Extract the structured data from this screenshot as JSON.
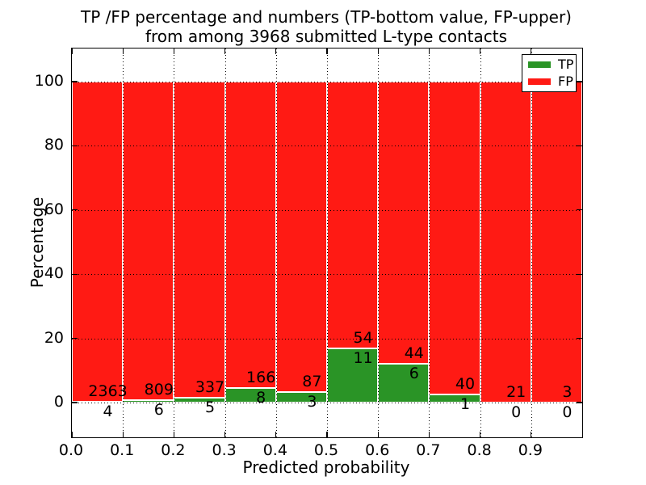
{
  "figure": {
    "title_line1": "TP /FP percentage and numbers (TP-bottom value, FP-upper)",
    "title_line2": "from among 3968 submitted L-type contacts"
  },
  "colors": {
    "tp_green": "#2a9426",
    "fp_red": "#ff1a14",
    "grid": "#000000",
    "background": "#ffffff"
  },
  "chart_data": {
    "type": "bar",
    "subtype": "stacked-percentage-histogram",
    "title": "TP /FP percentage and numbers (TP-bottom value, FP-upper)\nfrom among 3968 submitted L-type contacts",
    "xlabel": "Predicted probability",
    "ylabel": "Percentage",
    "total_contacts": 3968,
    "xlim": [
      0.0,
      1.0
    ],
    "ylim": [
      -10.8,
      110.3
    ],
    "grid": "dotted, both axes",
    "x_tick_labels": [
      "0.0",
      "0.1",
      "0.2",
      "0.3",
      "0.4",
      "0.5",
      "0.6",
      "0.7",
      "0.8",
      "0.9"
    ],
    "x_tick_values": [
      0.0,
      0.1,
      0.2,
      0.3,
      0.4,
      0.5,
      0.6,
      0.7,
      0.8,
      0.9
    ],
    "y_tick_labels": [
      "0",
      "20",
      "40",
      "60",
      "80",
      "100"
    ],
    "y_tick_values": [
      0,
      20,
      40,
      60,
      80,
      100
    ],
    "legend": {
      "position": "upper right",
      "entries": [
        {
          "label": "TP",
          "color": "#2a9426"
        },
        {
          "label": "FP",
          "color": "#ff1a14"
        }
      ]
    },
    "bins": [
      {
        "x_start": 0.0,
        "x_end": 0.1,
        "tp": 4,
        "fp": 2363,
        "tp_pct": 0.17
      },
      {
        "x_start": 0.1,
        "x_end": 0.2,
        "tp": 6,
        "fp": 809,
        "tp_pct": 0.74
      },
      {
        "x_start": 0.2,
        "x_end": 0.3,
        "tp": 5,
        "fp": 337,
        "tp_pct": 1.46
      },
      {
        "x_start": 0.3,
        "x_end": 0.4,
        "tp": 8,
        "fp": 166,
        "tp_pct": 4.6
      },
      {
        "x_start": 0.4,
        "x_end": 0.5,
        "tp": 3,
        "fp": 87,
        "tp_pct": 3.33
      },
      {
        "x_start": 0.5,
        "x_end": 0.6,
        "tp": 11,
        "fp": 54,
        "tp_pct": 16.92
      },
      {
        "x_start": 0.6,
        "x_end": 0.7,
        "tp": 6,
        "fp": 44,
        "tp_pct": 12.0
      },
      {
        "x_start": 0.7,
        "x_end": 0.8,
        "tp": 1,
        "fp": 40,
        "tp_pct": 2.44
      },
      {
        "x_start": 0.8,
        "x_end": 0.9,
        "tp": 0,
        "fp": 21,
        "tp_pct": 0.0
      },
      {
        "x_start": 0.9,
        "x_end": 1.0,
        "tp": 0,
        "fp": 3,
        "tp_pct": 0.0
      }
    ]
  }
}
